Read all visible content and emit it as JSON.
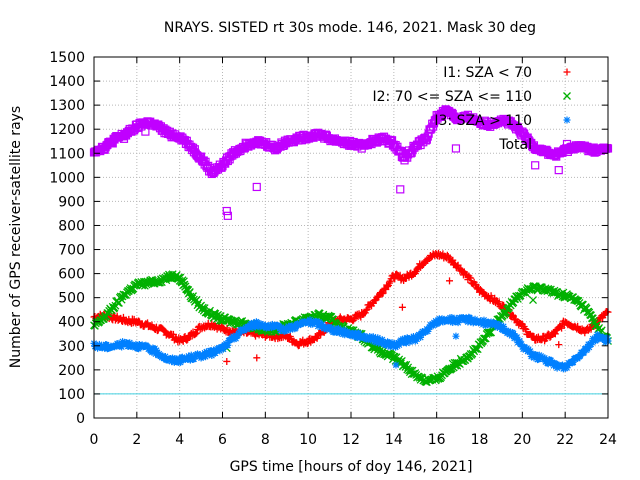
{
  "chart_data": {
    "type": "scatter",
    "title": "NRAYS. SISTED rt 30s mode. 146, 2021. Mask 30 deg",
    "xlabel": "GPS time [hours of doy 146, 2021]",
    "ylabel": "Number of GPS receiver-satellite rays",
    "xlim": [
      0,
      24
    ],
    "ylim": [
      0,
      1500
    ],
    "xticks": [
      0,
      2,
      4,
      6,
      8,
      10,
      12,
      14,
      16,
      18,
      20,
      22,
      24
    ],
    "yticks": [
      0,
      100,
      200,
      300,
      400,
      500,
      600,
      700,
      800,
      900,
      1000,
      1100,
      1200,
      1300,
      1400,
      1500
    ],
    "grid": true,
    "legend_position": "top-right",
    "threshold_line": {
      "y": 100,
      "color": "#40d0e0"
    },
    "series": [
      {
        "name": "I1: SZA < 70",
        "color": "#ff0000",
        "marker": "plus",
        "x": [
          0,
          0.5,
          1,
          1.5,
          2,
          2.5,
          3,
          3.5,
          4,
          4.5,
          5,
          5.5,
          6,
          6.5,
          7,
          7.5,
          8,
          8.5,
          9,
          9.5,
          10,
          10.5,
          11,
          11.5,
          12,
          12.5,
          13,
          13.5,
          14,
          14.5,
          15,
          15.5,
          16,
          16.5,
          17,
          17.5,
          18,
          18.5,
          19,
          19.5,
          20,
          20.5,
          21,
          21.5,
          22,
          22.5,
          23,
          23.5,
          24,
          6.2,
          7.6,
          14.4,
          16.6,
          21.7
        ],
        "y": [
          420,
          425,
          415,
          405,
          400,
          385,
          370,
          350,
          320,
          340,
          380,
          390,
          370,
          360,
          355,
          350,
          345,
          340,
          340,
          310,
          320,
          340,
          390,
          410,
          410,
          430,
          480,
          530,
          590,
          580,
          610,
          660,
          680,
          670,
          630,
          580,
          530,
          500,
          470,
          430,
          380,
          330,
          330,
          350,
          400,
          380,
          360,
          400,
          440,
          235,
          250,
          460,
          570,
          305
        ]
      },
      {
        "name": "I2: 70 <= SZA <= 110",
        "color": "#00b000",
        "marker": "x",
        "x": [
          0,
          0.5,
          1,
          1.5,
          2,
          2.5,
          3,
          3.5,
          3.8,
          4.2,
          4.5,
          5,
          5.5,
          6,
          6.5,
          7,
          7.5,
          8,
          8.5,
          9,
          9.5,
          10,
          10.5,
          11,
          11.5,
          12,
          12.5,
          13,
          13.5,
          14,
          14.5,
          15,
          15.5,
          16,
          16.5,
          17,
          17.5,
          18,
          18.5,
          19,
          19.5,
          20,
          20.5,
          21,
          21.5,
          22,
          22.5,
          23,
          23.5,
          24,
          6.2,
          20.5
        ],
        "y": [
          380,
          420,
          470,
          520,
          555,
          560,
          570,
          585,
          595,
          560,
          510,
          460,
          430,
          410,
          400,
          395,
          380,
          365,
          370,
          385,
          400,
          420,
          425,
          415,
          380,
          360,
          340,
          300,
          270,
          250,
          220,
          180,
          155,
          160,
          200,
          230,
          260,
          300,
          360,
          420,
          480,
          520,
          540,
          540,
          520,
          510,
          490,
          450,
          380,
          320,
          290,
          490
        ]
      },
      {
        "name": "I3: SZA > 110",
        "color": "#0080ff",
        "marker": "star",
        "x": [
          0,
          0.5,
          1,
          1.5,
          2,
          2.5,
          3,
          3.5,
          4,
          4.5,
          5,
          5.5,
          6,
          6.5,
          7,
          7.5,
          8,
          8.5,
          9,
          9.5,
          10,
          10.5,
          11,
          11.5,
          12,
          12.5,
          13,
          13.5,
          14,
          14.5,
          15,
          15.5,
          16,
          16.5,
          17,
          17.5,
          18,
          18.5,
          19,
          19.5,
          20,
          20.5,
          21,
          21.5,
          22,
          22.5,
          23,
          23.5,
          24,
          14.1,
          16.9
        ],
        "y": [
          300,
          295,
          300,
          310,
          300,
          290,
          270,
          240,
          240,
          250,
          260,
          270,
          290,
          330,
          370,
          390,
          385,
          375,
          370,
          385,
          400,
          390,
          370,
          360,
          350,
          340,
          330,
          315,
          300,
          320,
          330,
          360,
          400,
          410,
          405,
          410,
          400,
          390,
          380,
          350,
          300,
          260,
          245,
          220,
          210,
          250,
          290,
          340,
          320,
          220,
          340
        ]
      },
      {
        "name": "Total",
        "color": "#c000ff",
        "marker": "square",
        "x": [
          0,
          0.5,
          1,
          1.5,
          2,
          2.5,
          3,
          3.5,
          4,
          4.5,
          5,
          5.5,
          6,
          6.5,
          7,
          7.5,
          8,
          8.5,
          9,
          9.5,
          10,
          10.5,
          11,
          11.5,
          12,
          12.5,
          13,
          13.5,
          14,
          14.5,
          15,
          15.5,
          16,
          16.5,
          17,
          17.5,
          18,
          18.5,
          19,
          19.5,
          20,
          20.5,
          21,
          21.5,
          22,
          22.5,
          23,
          23.5,
          24,
          1.4,
          2.4,
          6.2,
          6.25,
          7.6,
          14.3,
          16.9,
          20.6,
          21.7
        ],
        "y": [
          1110,
          1125,
          1160,
          1180,
          1210,
          1230,
          1210,
          1180,
          1170,
          1130,
          1080,
          1020,
          1050,
          1100,
          1130,
          1150,
          1140,
          1120,
          1150,
          1160,
          1170,
          1180,
          1160,
          1150,
          1140,
          1130,
          1150,
          1160,
          1140,
          1080,
          1130,
          1160,
          1250,
          1280,
          1240,
          1250,
          1230,
          1220,
          1240,
          1220,
          1180,
          1130,
          1110,
          1090,
          1110,
          1130,
          1120,
          1110,
          1120,
          1160,
          1190,
          860,
          840,
          960,
          950,
          1120,
          1050,
          1030
        ]
      }
    ]
  }
}
